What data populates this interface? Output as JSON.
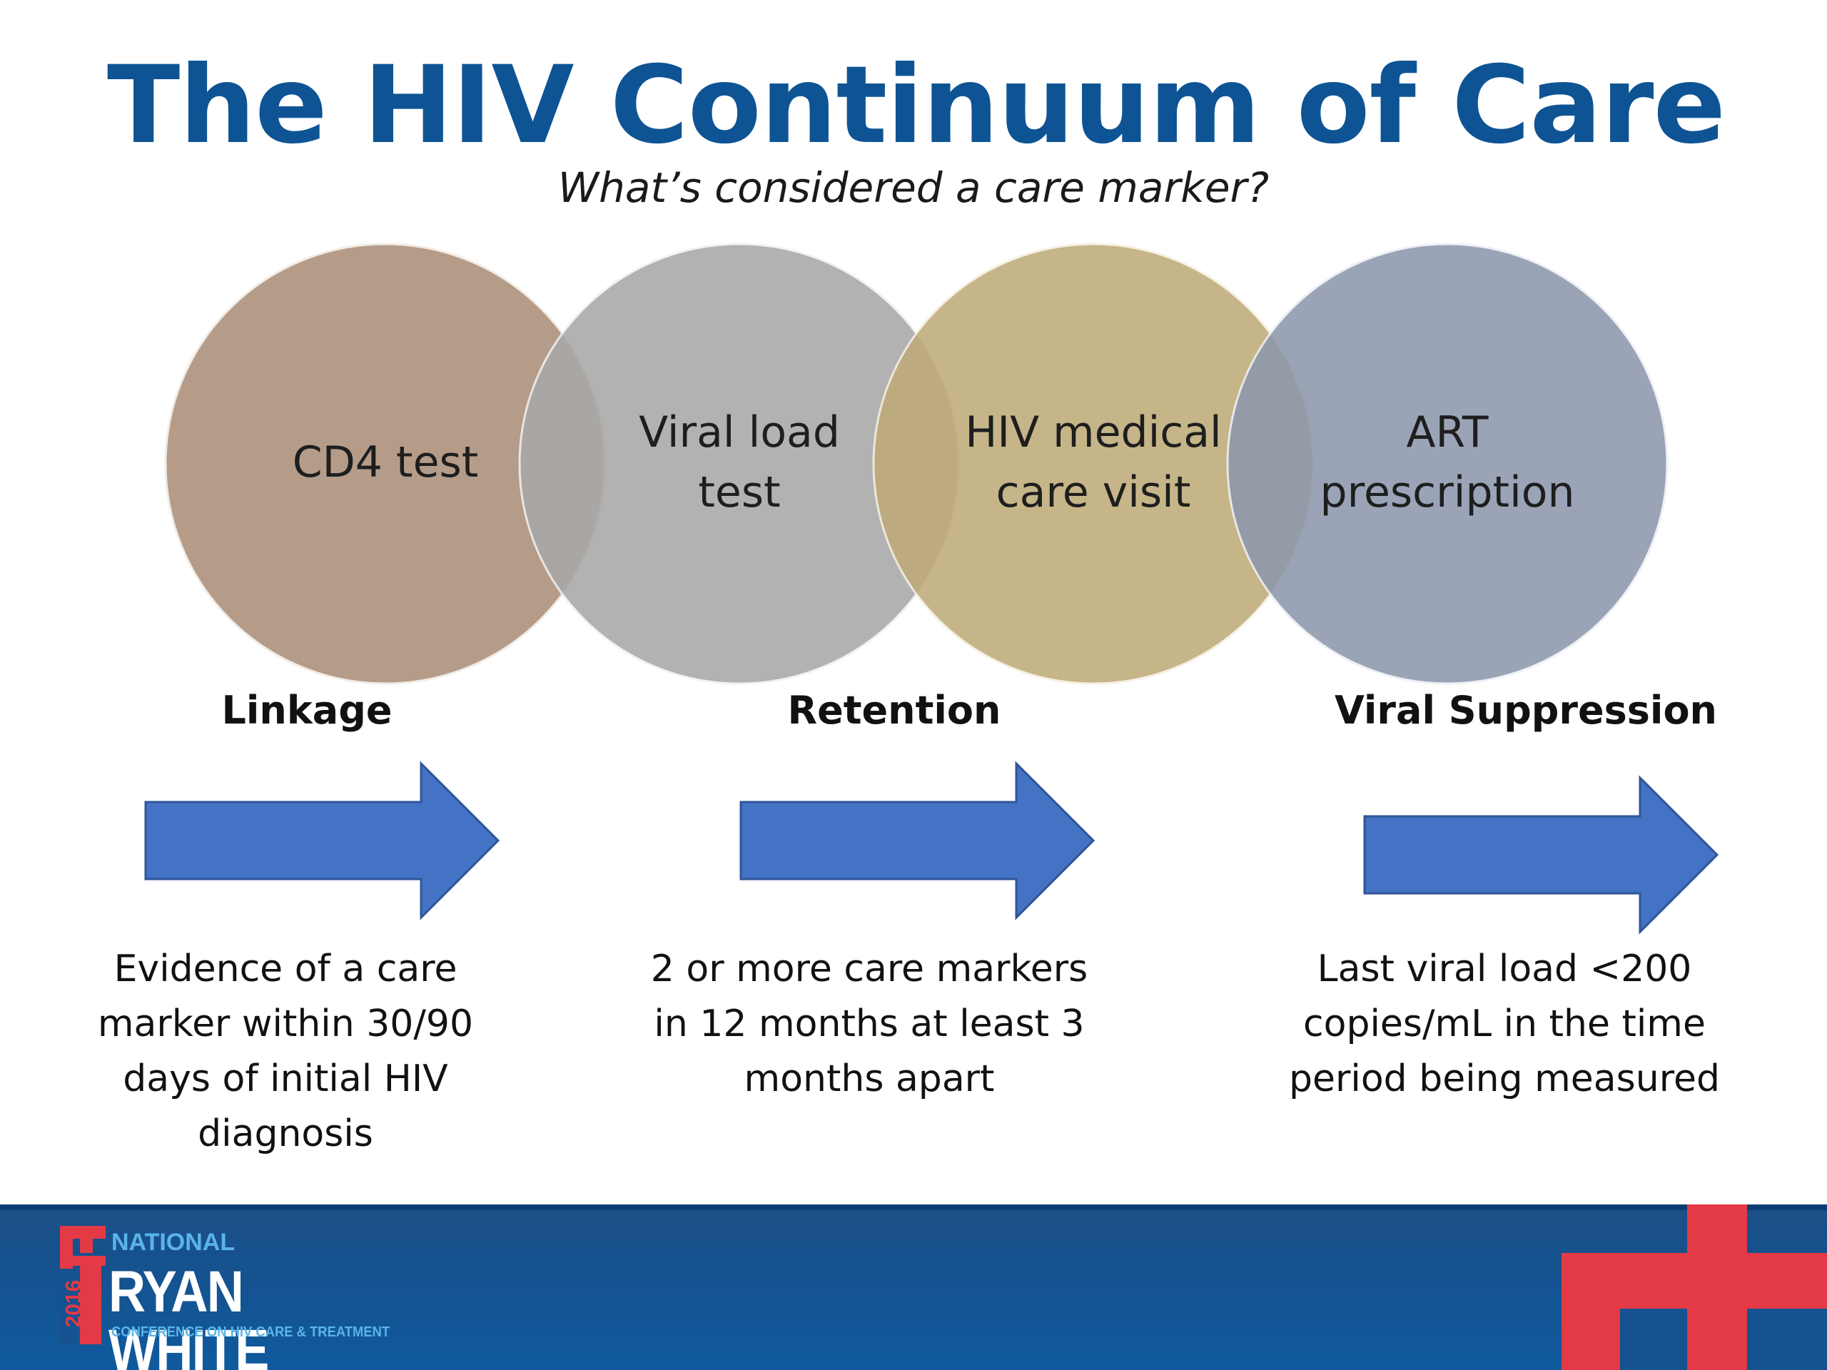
{
  "slide": {
    "title": "The HIV Continuum of Care",
    "subtitle": "What’s considered a care marker?"
  },
  "care_markers": [
    {
      "label": "CD4 test",
      "color": "#b59c89"
    },
    {
      "label": "Viral load\ntest",
      "color": "#a8a8a8"
    },
    {
      "label": "HIV medical\ncare visit",
      "color": "#bfab78"
    },
    {
      "label": "ART\nprescription",
      "color": "#8d98ac"
    }
  ],
  "stages": [
    {
      "label": "Linkage",
      "description": "Evidence of a care marker within 30/90 days of initial HIV diagnosis"
    },
    {
      "label": "Retention",
      "description": "2 or more care markers in 12 months at least 3 months apart"
    },
    {
      "label": "Viral Suppression",
      "description": "Last viral load <200 copies/mL in the time period being measured"
    }
  ],
  "colors": {
    "title": "#0e5494",
    "arrow_fill": "#4472c4",
    "arrow_stroke": "#2f5597",
    "footer_blue": "#15528f",
    "logo_red": "#e33a45",
    "logo_light_blue": "#5ab4e8"
  },
  "footer": {
    "logo": {
      "national": "NATIONAL",
      "name": "RYAN WHITE",
      "tagline": "CONFERENCE ON HIV CARE & TREATMENT",
      "year": "2016"
    }
  }
}
